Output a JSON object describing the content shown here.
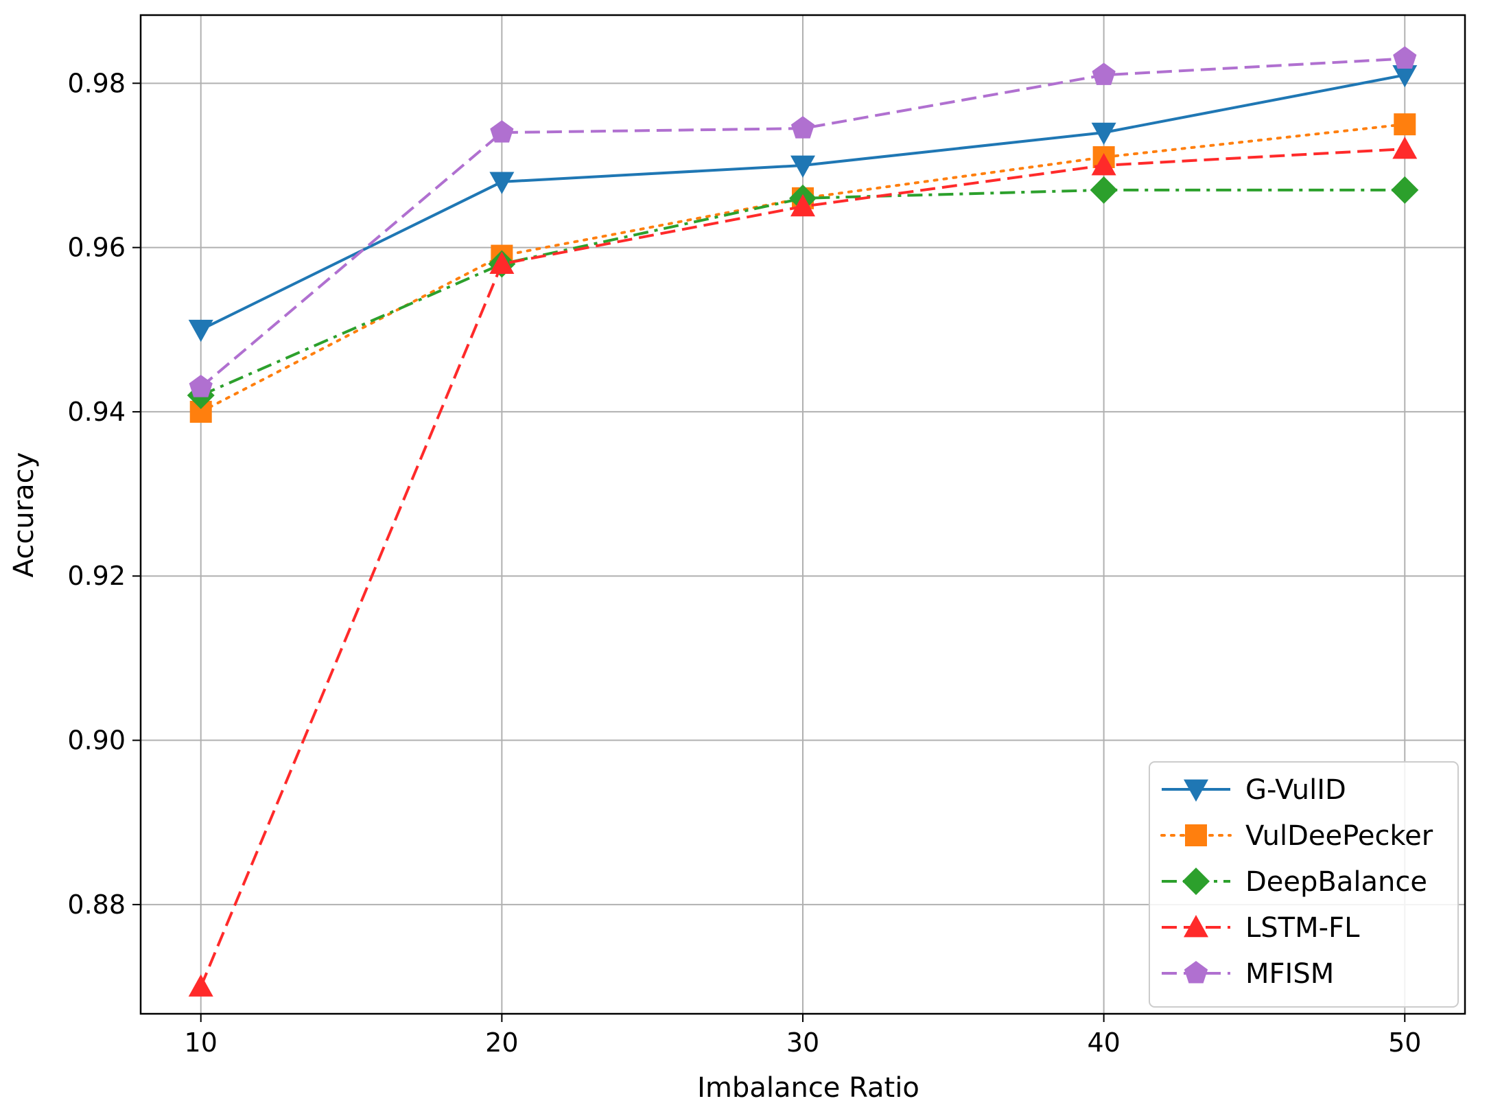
{
  "chart_data": {
    "type": "line",
    "title": "",
    "xlabel": "Imbalance Ratio",
    "ylabel": "Accuracy",
    "x": [
      10,
      20,
      30,
      40,
      50
    ],
    "xlim": [
      8,
      52
    ],
    "ylim": [
      0.8667,
      0.9883
    ],
    "xticks": [
      10,
      20,
      30,
      40,
      50
    ],
    "yticks": [
      0.88,
      0.9,
      0.92,
      0.94,
      0.96,
      0.98
    ],
    "ytick_labels": [
      "0.88",
      "0.90",
      "0.92",
      "0.94",
      "0.96",
      "0.98"
    ],
    "grid": true,
    "legend_position": "lower-right",
    "series": [
      {
        "name": "G-VulID",
        "values": [
          0.95,
          0.968,
          0.97,
          0.974,
          0.981
        ],
        "color": "#1f77b4",
        "linestyle": "solid",
        "marker": "triangle-down"
      },
      {
        "name": "VulDeePecker",
        "values": [
          0.94,
          0.959,
          0.966,
          0.971,
          0.975
        ],
        "color": "#ff7f0e",
        "linestyle": "dotted",
        "marker": "square"
      },
      {
        "name": "DeepBalance",
        "values": [
          0.942,
          0.958,
          0.966,
          0.967,
          0.967
        ],
        "color": "#2ca02c",
        "linestyle": "dashdot",
        "marker": "diamond"
      },
      {
        "name": "LSTM-FL",
        "values": [
          0.87,
          0.958,
          0.965,
          0.97,
          0.972
        ],
        "color": "#ff2a2a",
        "linestyle": "dashed",
        "marker": "triangle-up"
      },
      {
        "name": "MFISM",
        "values": [
          0.943,
          0.974,
          0.9745,
          0.981,
          0.983
        ],
        "color": "#b070d0",
        "linestyle": "dashed",
        "marker": "pentagon"
      }
    ]
  }
}
